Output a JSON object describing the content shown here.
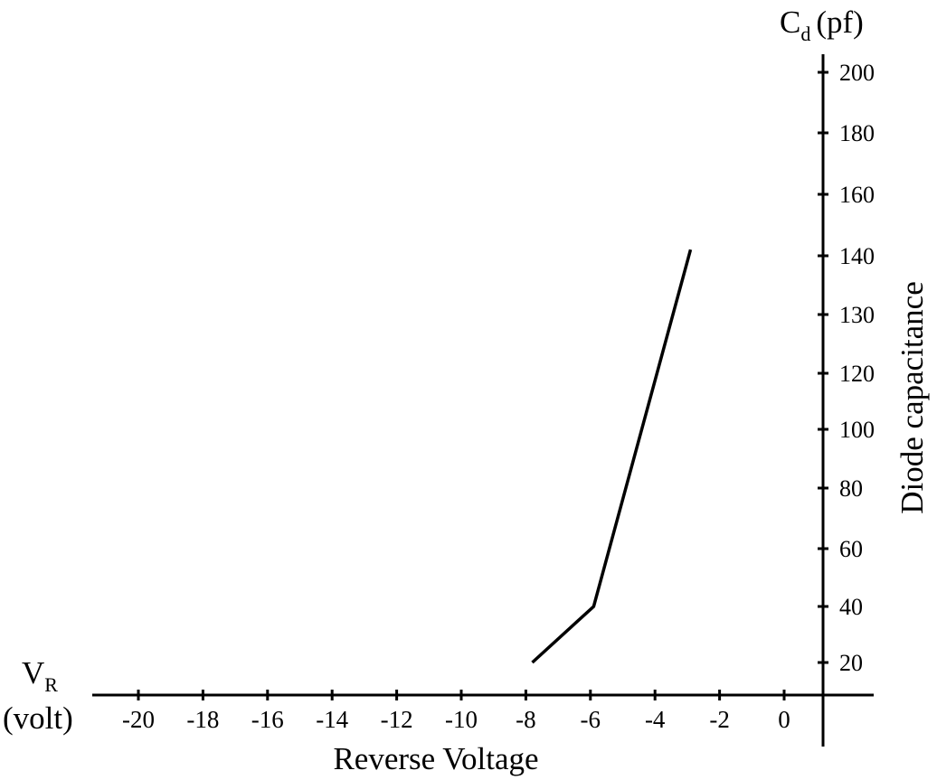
{
  "chart_data": {
    "type": "line",
    "x": [
      -7.8,
      -5.9,
      -2.9
    ],
    "y": [
      20,
      40,
      142
    ],
    "xticks": [
      "-20",
      "-18",
      "-16",
      "-14",
      "-12",
      "-10",
      "-8",
      "-6",
      "-4",
      "-2",
      "0"
    ],
    "yticks": [
      "20",
      "40",
      "60",
      "80",
      "100",
      "120",
      "130",
      "140",
      "160",
      "180",
      "200"
    ],
    "xlabel": "Reverse Voltage",
    "x_axis_symbol": {
      "main": "V",
      "sub": "R"
    },
    "x_axis_unit": "(volt)",
    "ylabel": "Diode capacitance",
    "y_axis_symbol": {
      "main": "C",
      "sub": "d",
      "unit": "(pf)"
    },
    "grid": false,
    "legend": "none",
    "line_color": "#000000"
  }
}
